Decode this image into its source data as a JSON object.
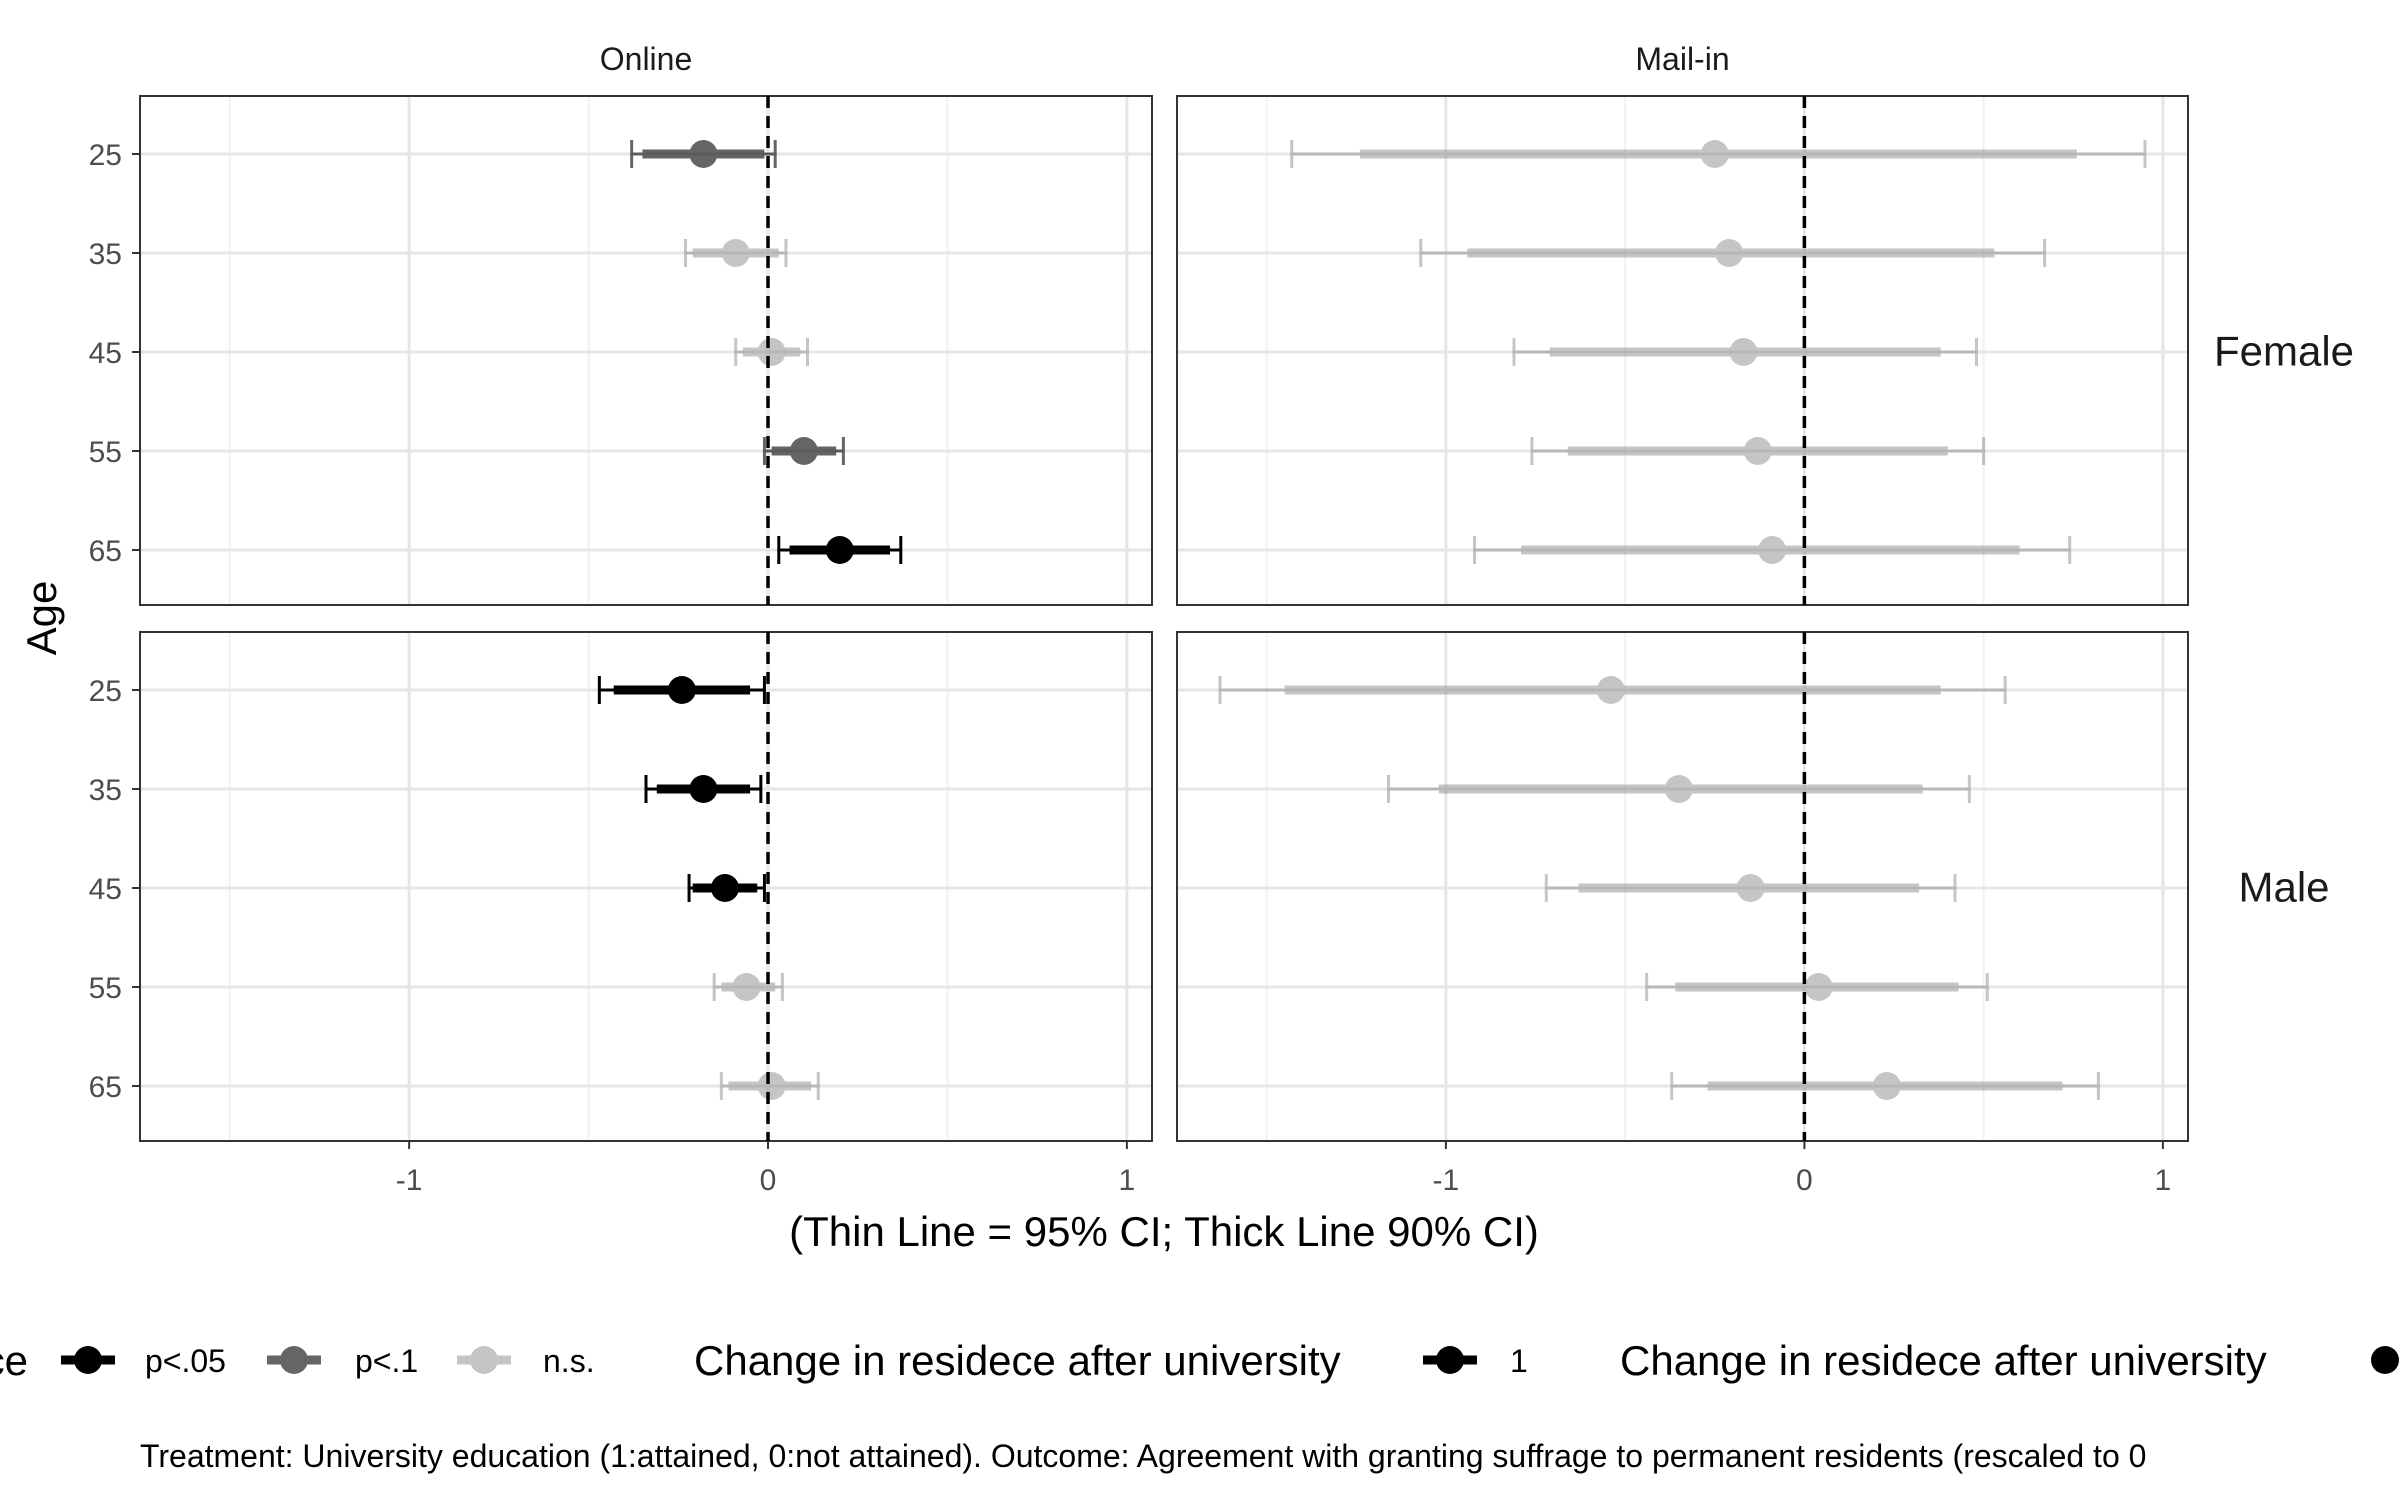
{
  "chart_data": {
    "type": "scatter",
    "subtype": "coefficient-plot-with-confidence-intervals",
    "facet_columns": [
      "Online",
      "Mail-in"
    ],
    "facet_rows": [
      "Female",
      "Male"
    ],
    "ylabel": "Age",
    "xlabel": "(Thin Line = 95% CI; Thick Line 90% CI)",
    "categories": [
      "25",
      "35",
      "45",
      "55",
      "65"
    ],
    "x_ticks": [
      "-1",
      "0",
      "1"
    ],
    "xlim": [
      -1.75,
      1.07
    ],
    "reference_line_x": 0,
    "grid": true,
    "legend_position": "bottom",
    "legend": {
      "groups": [
        {
          "title": "ce",
          "entries": [
            {
              "label": "p<.05",
              "level": "p05"
            },
            {
              "label": "p<.1",
              "level": "p10"
            },
            {
              "label": "n.s.",
              "level": "ns"
            }
          ]
        },
        {
          "title": "Change in residece after university",
          "entries": [
            {
              "label": "1",
              "level": "p05"
            }
          ]
        },
        {
          "title": "Change in residece after university",
          "entries": [
            {
              "label": "",
              "level": "dot"
            }
          ]
        }
      ]
    },
    "styles": {
      "p05": {
        "color": "#000000",
        "opacity": 1.0
      },
      "p10": {
        "color": "#000000",
        "opacity": 0.6
      },
      "ns": {
        "color": "#7f7f7f",
        "opacity": 0.45
      }
    },
    "panels": [
      {
        "column": "Online",
        "row": "Female",
        "points": [
          {
            "age": "25",
            "estimate": -0.18,
            "ci95": [
              -0.38,
              0.02
            ],
            "ci90": [
              -0.35,
              -0.01
            ],
            "sig": "p10"
          },
          {
            "age": "35",
            "estimate": -0.09,
            "ci95": [
              -0.23,
              0.05
            ],
            "ci90": [
              -0.21,
              0.03
            ],
            "sig": "ns"
          },
          {
            "age": "45",
            "estimate": 0.01,
            "ci95": [
              -0.09,
              0.11
            ],
            "ci90": [
              -0.07,
              0.09
            ],
            "sig": "ns"
          },
          {
            "age": "55",
            "estimate": 0.1,
            "ci95": [
              -0.01,
              0.21
            ],
            "ci90": [
              0.01,
              0.19
            ],
            "sig": "p10"
          },
          {
            "age": "65",
            "estimate": 0.2,
            "ci95": [
              0.03,
              0.37
            ],
            "ci90": [
              0.06,
              0.34
            ],
            "sig": "p05"
          }
        ]
      },
      {
        "column": "Mail-in",
        "row": "Female",
        "points": [
          {
            "age": "25",
            "estimate": -0.25,
            "ci95": [
              -1.43,
              0.95
            ],
            "ci90": [
              -1.24,
              0.76
            ],
            "sig": "ns"
          },
          {
            "age": "35",
            "estimate": -0.21,
            "ci95": [
              -1.07,
              0.67
            ],
            "ci90": [
              -0.94,
              0.53
            ],
            "sig": "ns"
          },
          {
            "age": "45",
            "estimate": -0.17,
            "ci95": [
              -0.81,
              0.48
            ],
            "ci90": [
              -0.71,
              0.38
            ],
            "sig": "ns"
          },
          {
            "age": "55",
            "estimate": -0.13,
            "ci95": [
              -0.76,
              0.5
            ],
            "ci90": [
              -0.66,
              0.4
            ],
            "sig": "ns"
          },
          {
            "age": "65",
            "estimate": -0.09,
            "ci95": [
              -0.92,
              0.74
            ],
            "ci90": [
              -0.79,
              0.6
            ],
            "sig": "ns"
          }
        ]
      },
      {
        "column": "Online",
        "row": "Male",
        "points": [
          {
            "age": "25",
            "estimate": -0.24,
            "ci95": [
              -0.47,
              -0.01
            ],
            "ci90": [
              -0.43,
              -0.05
            ],
            "sig": "p05"
          },
          {
            "age": "35",
            "estimate": -0.18,
            "ci95": [
              -0.34,
              -0.02
            ],
            "ci90": [
              -0.31,
              -0.05
            ],
            "sig": "p05"
          },
          {
            "age": "45",
            "estimate": -0.12,
            "ci95": [
              -0.22,
              -0.01
            ],
            "ci90": [
              -0.21,
              -0.03
            ],
            "sig": "p05"
          },
          {
            "age": "55",
            "estimate": -0.06,
            "ci95": [
              -0.15,
              0.04
            ],
            "ci90": [
              -0.13,
              0.02
            ],
            "sig": "ns"
          },
          {
            "age": "65",
            "estimate": 0.01,
            "ci95": [
              -0.13,
              0.14
            ],
            "ci90": [
              -0.11,
              0.12
            ],
            "sig": "ns"
          }
        ]
      },
      {
        "column": "Mail-in",
        "row": "Male",
        "points": [
          {
            "age": "25",
            "estimate": -0.54,
            "ci95": [
              -1.63,
              0.56
            ],
            "ci90": [
              -1.45,
              0.38
            ],
            "sig": "ns"
          },
          {
            "age": "35",
            "estimate": -0.35,
            "ci95": [
              -1.16,
              0.46
            ],
            "ci90": [
              -1.02,
              0.33
            ],
            "sig": "ns"
          },
          {
            "age": "45",
            "estimate": -0.15,
            "ci95": [
              -0.72,
              0.42
            ],
            "ci90": [
              -0.63,
              0.32
            ],
            "sig": "ns"
          },
          {
            "age": "55",
            "estimate": 0.04,
            "ci95": [
              -0.44,
              0.51
            ],
            "ci90": [
              -0.36,
              0.43
            ],
            "sig": "ns"
          },
          {
            "age": "65",
            "estimate": 0.23,
            "ci95": [
              -0.37,
              0.82
            ],
            "ci90": [
              -0.27,
              0.72
            ],
            "sig": "ns"
          }
        ]
      }
    ],
    "caption": "Treatment: University education (1:attained, 0:not attained). Outcome: Agreement with granting suffrage to permanent residents (rescaled to 0"
  }
}
